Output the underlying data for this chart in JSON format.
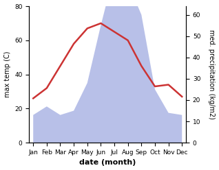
{
  "months": [
    "Jan",
    "Feb",
    "Mar",
    "Apr",
    "May",
    "Jun",
    "Jul",
    "Aug",
    "Sep",
    "Oct",
    "Nov",
    "Dec"
  ],
  "temperature": [
    26,
    32,
    45,
    58,
    67,
    70,
    65,
    60,
    45,
    33,
    34,
    27
  ],
  "precipitation": [
    13,
    17,
    13,
    15,
    28,
    55,
    80,
    75,
    60,
    25,
    14,
    13
  ],
  "temp_color": "#cc3333",
  "precip_fill_color": "#b8c0e8",
  "temp_ylim": [
    0,
    80
  ],
  "precip_ylim": [
    0,
    64
  ],
  "left_yticks": [
    0,
    20,
    40,
    60,
    80
  ],
  "right_yticks": [
    0,
    10,
    20,
    30,
    40,
    50,
    60
  ],
  "xlabel": "date (month)",
  "ylabel_left": "max temp (C)",
  "ylabel_right": "med. precipitation (kg/m2)",
  "bg_color": "#ffffff",
  "line_width": 1.8,
  "label_fontsize": 7,
  "tick_fontsize": 6.5,
  "xlabel_fontsize": 8
}
